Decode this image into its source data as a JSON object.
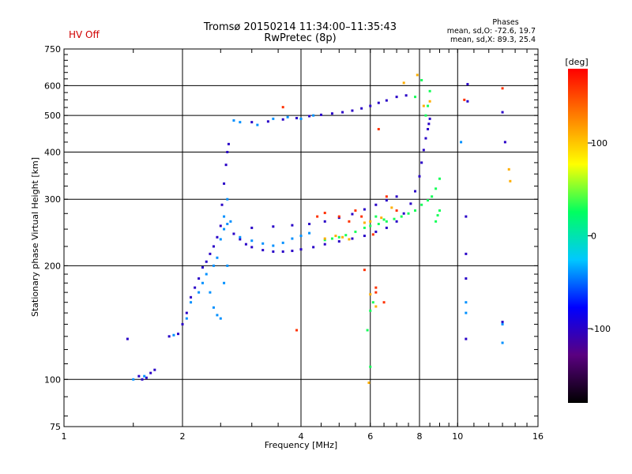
{
  "status": {
    "hv_label": "HV Off",
    "hv_color": "#d00000"
  },
  "header": {
    "title_line1": "Tromsø 20150214 11:34:00–11:35:43",
    "title_line2": "RwPretec (8p)"
  },
  "stats": {
    "heading": "Phases",
    "o_line": "mean, sd,O: -72.6, 19.7",
    "x_line": "mean, sd,X: 89.3, 25.4"
  },
  "chart_data": {
    "type": "scatter",
    "title": "Tromsø 20150214 11:34:00–11:35:43",
    "subtitle": "RwPretec (8p)",
    "xlabel": "Frequency [MHz]",
    "ylabel": "Stationary phase Virtual Height [km]",
    "x_scale": "log",
    "y_scale": "log",
    "xlim": [
      1,
      16
    ],
    "ylim": [
      75,
      750
    ],
    "x_ticks": [
      1,
      2,
      4,
      6,
      8,
      10,
      16
    ],
    "x_tick_labels": [
      "1",
      "2",
      "4",
      "6",
      "8",
      "10",
      "16"
    ],
    "y_ticks": [
      75,
      100,
      200,
      300,
      400,
      500,
      600,
      750
    ],
    "y_tick_labels": [
      "75",
      "100",
      "200",
      "300",
      "400",
      "500",
      "600",
      "750"
    ],
    "grid": true,
    "colorbar": {
      "label": "[deg]",
      "range": [
        -180,
        180
      ],
      "ticks": [
        100,
        0,
        -100
      ],
      "tick_labels": [
        "100",
        "0",
        "-100"
      ],
      "colors": [
        "#000000",
        "#5a0080",
        "#0000ff",
        "#00c8ff",
        "#00ff60",
        "#ffff00",
        "#ff8000",
        "#ff0000"
      ]
    },
    "series": [
      {
        "color_value": -100,
        "points": [
          [
            1.45,
            128
          ],
          [
            1.55,
            102
          ],
          [
            1.58,
            100
          ],
          [
            1.62,
            101
          ],
          [
            1.66,
            104
          ],
          [
            1.7,
            106
          ],
          [
            1.85,
            130
          ],
          [
            1.95,
            132
          ],
          [
            2.0,
            140
          ],
          [
            2.05,
            150
          ],
          [
            2.1,
            165
          ],
          [
            2.15,
            175
          ],
          [
            2.2,
            185
          ],
          [
            2.25,
            198
          ],
          [
            2.3,
            205
          ],
          [
            2.35,
            215
          ],
          [
            2.4,
            225
          ],
          [
            2.45,
            238
          ],
          [
            2.5,
            255
          ],
          [
            2.52,
            290
          ],
          [
            2.55,
            330
          ],
          [
            2.58,
            370
          ],
          [
            2.6,
            400
          ],
          [
            2.62,
            420
          ],
          [
            2.7,
            243
          ],
          [
            2.8,
            235
          ],
          [
            2.9,
            228
          ],
          [
            3.0,
            224
          ],
          [
            3.2,
            220
          ],
          [
            3.4,
            218
          ],
          [
            3.6,
            218
          ],
          [
            3.8,
            219
          ],
          [
            4.0,
            221
          ],
          [
            4.3,
            224
          ],
          [
            4.6,
            228
          ],
          [
            5.0,
            232
          ],
          [
            5.4,
            236
          ],
          [
            5.8,
            240
          ],
          [
            6.2,
            246
          ],
          [
            6.6,
            252
          ],
          [
            7.0,
            262
          ],
          [
            7.3,
            275
          ],
          [
            7.6,
            292
          ],
          [
            7.8,
            315
          ],
          [
            8.0,
            345
          ],
          [
            8.1,
            375
          ],
          [
            8.2,
            405
          ],
          [
            8.3,
            435
          ],
          [
            8.4,
            460
          ],
          [
            8.45,
            475
          ],
          [
            8.5,
            490
          ],
          [
            3.0,
            480
          ],
          [
            3.3,
            482
          ],
          [
            3.6,
            488
          ],
          [
            3.9,
            492
          ],
          [
            4.2,
            498
          ],
          [
            4.5,
            502
          ],
          [
            4.8,
            506
          ],
          [
            5.1,
            510
          ],
          [
            5.4,
            515
          ],
          [
            5.7,
            522
          ],
          [
            6.0,
            530
          ],
          [
            6.3,
            540
          ],
          [
            6.6,
            548
          ],
          [
            7.0,
            560
          ],
          [
            7.4,
            565
          ],
          [
            3.0,
            252
          ],
          [
            3.4,
            254
          ],
          [
            3.8,
            256
          ],
          [
            4.2,
            258
          ],
          [
            4.6,
            262
          ],
          [
            5.0,
            268
          ],
          [
            5.4,
            274
          ],
          [
            5.8,
            282
          ],
          [
            6.2,
            290
          ],
          [
            6.6,
            298
          ],
          [
            7.0,
            305
          ],
          [
            10.5,
            128
          ],
          [
            10.5,
            270
          ],
          [
            10.5,
            215
          ],
          [
            10.5,
            185
          ],
          [
            10.6,
            605
          ],
          [
            10.6,
            545
          ],
          [
            13.0,
            510
          ],
          [
            13.2,
            425
          ],
          [
            13.0,
            142
          ]
        ]
      },
      {
        "color_value": -40,
        "points": [
          [
            1.5,
            100
          ],
          [
            1.6,
            102
          ],
          [
            1.9,
            131
          ],
          [
            2.05,
            145
          ],
          [
            2.1,
            160
          ],
          [
            2.2,
            170
          ],
          [
            2.25,
            180
          ],
          [
            2.3,
            190
          ],
          [
            2.4,
            200
          ],
          [
            2.45,
            210
          ],
          [
            2.5,
            235
          ],
          [
            2.55,
            250
          ],
          [
            2.6,
            258
          ],
          [
            2.65,
            262
          ],
          [
            2.8,
            238
          ],
          [
            3.0,
            233
          ],
          [
            3.2,
            229
          ],
          [
            3.4,
            226
          ],
          [
            3.6,
            230
          ],
          [
            3.8,
            236
          ],
          [
            4.0,
            240
          ],
          [
            4.2,
            244
          ],
          [
            2.7,
            485
          ],
          [
            2.8,
            480
          ],
          [
            3.1,
            472
          ],
          [
            3.4,
            490
          ],
          [
            3.7,
            495
          ],
          [
            4.0,
            490
          ],
          [
            4.3,
            500
          ],
          [
            2.55,
            270
          ],
          [
            2.6,
            300
          ],
          [
            2.35,
            170
          ],
          [
            2.4,
            155
          ],
          [
            2.45,
            148
          ],
          [
            2.5,
            145
          ],
          [
            2.55,
            180
          ],
          [
            2.6,
            200
          ],
          [
            13.0,
            140
          ],
          [
            13.0,
            125
          ],
          [
            10.2,
            425
          ],
          [
            10.5,
            160
          ],
          [
            10.5,
            150
          ]
        ]
      },
      {
        "color_value": 30,
        "points": [
          [
            4.6,
            234
          ],
          [
            4.8,
            236
          ],
          [
            5.0,
            238
          ],
          [
            5.2,
            241
          ],
          [
            5.5,
            246
          ],
          [
            5.8,
            252
          ],
          [
            6.0,
            255
          ],
          [
            6.3,
            258
          ],
          [
            6.6,
            262
          ],
          [
            6.9,
            266
          ],
          [
            7.2,
            270
          ],
          [
            7.5,
            275
          ],
          [
            7.8,
            280
          ],
          [
            8.1,
            290
          ],
          [
            8.4,
            298
          ],
          [
            8.6,
            305
          ],
          [
            8.8,
            320
          ],
          [
            9.0,
            340
          ],
          [
            6.2,
            270
          ],
          [
            6.5,
            265
          ],
          [
            8.8,
            262
          ],
          [
            8.9,
            272
          ],
          [
            9.0,
            280
          ],
          [
            8.3,
            500
          ],
          [
            8.4,
            530
          ],
          [
            8.5,
            580
          ],
          [
            7.8,
            560
          ],
          [
            8.1,
            620
          ],
          [
            6.0,
            152
          ],
          [
            6.1,
            160
          ],
          [
            5.9,
            135
          ],
          [
            6.0,
            108
          ]
        ]
      },
      {
        "color_value": 110,
        "points": [
          [
            4.6,
            236
          ],
          [
            4.9,
            240
          ],
          [
            5.1,
            238
          ],
          [
            5.3,
            235
          ],
          [
            5.8,
            260
          ],
          [
            6.0,
            262
          ],
          [
            6.4,
            268
          ],
          [
            6.8,
            285
          ],
          [
            7.3,
            610
          ],
          [
            7.9,
            640
          ],
          [
            8.2,
            530
          ],
          [
            8.5,
            545
          ],
          [
            6.0,
            168
          ],
          [
            6.2,
            156
          ],
          [
            5.95,
            98
          ],
          [
            13.5,
            360
          ],
          [
            13.6,
            335
          ]
        ]
      },
      {
        "color_value": 160,
        "points": [
          [
            3.6,
            526
          ],
          [
            4.4,
            270
          ],
          [
            4.6,
            276
          ],
          [
            5.0,
            270
          ],
          [
            5.3,
            262
          ],
          [
            5.5,
            280
          ],
          [
            5.7,
            270
          ],
          [
            6.1,
            242
          ],
          [
            6.6,
            305
          ],
          [
            7.0,
            280
          ],
          [
            6.2,
            170
          ],
          [
            6.5,
            160
          ],
          [
            6.2,
            175
          ],
          [
            5.8,
            195
          ],
          [
            3.9,
            135
          ],
          [
            10.4,
            550
          ],
          [
            13.0,
            590
          ],
          [
            6.3,
            460
          ]
        ]
      }
    ]
  }
}
